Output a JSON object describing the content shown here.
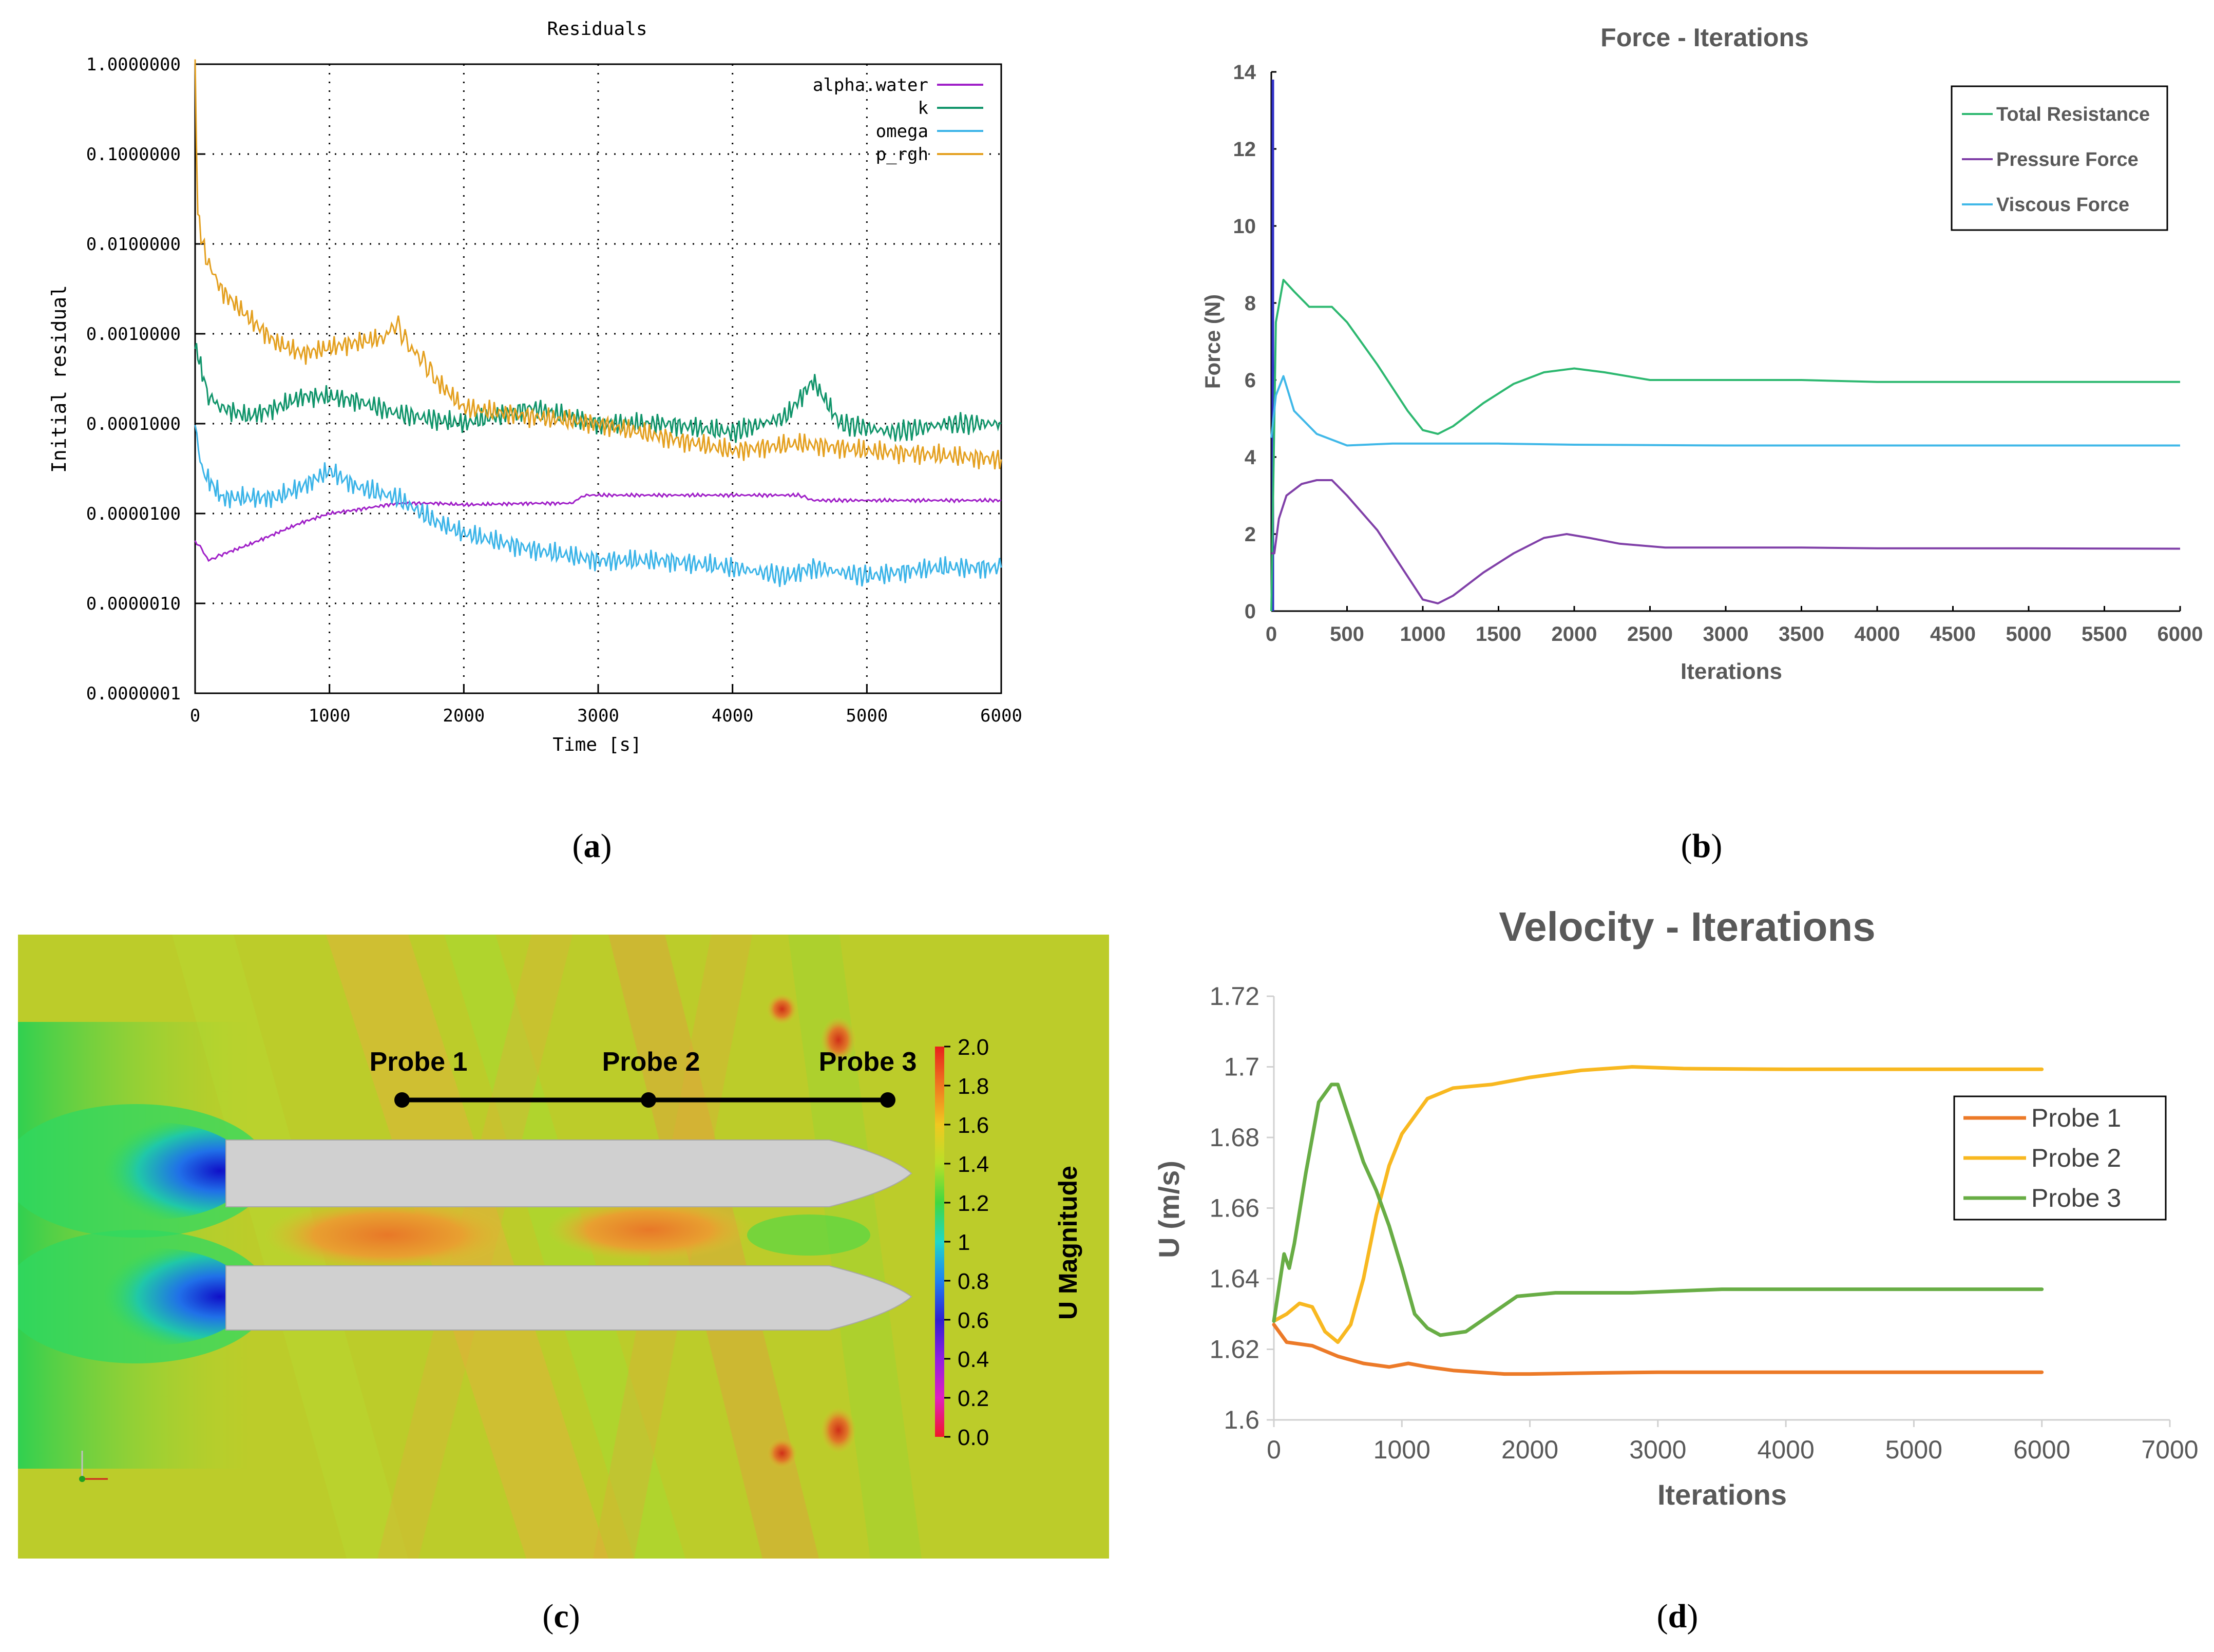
{
  "captions": {
    "a_open": "(",
    "a_letter": "a",
    "a_close": ")",
    "b_open": "(",
    "b_letter": "b",
    "b_close": ")",
    "c_open": "(",
    "c_letter": "c",
    "c_close": ")",
    "d_open": "(",
    "d_letter": "d",
    "d_close": ")"
  },
  "chart_data": [
    {
      "id": "a",
      "type": "line",
      "title": "Residuals",
      "xlabel": "Time [s]",
      "ylabel": "Initial residual",
      "yscale": "log",
      "xlim": [
        0,
        6000
      ],
      "ylim": [
        1e-07,
        1
      ],
      "xticks": [
        "0",
        "1000",
        "2000",
        "3000",
        "4000",
        "5000",
        "6000"
      ],
      "yticks": [
        "1.0000000",
        "0.1000000",
        "0.0100000",
        "0.0010000",
        "0.0001000",
        "0.0000100",
        "0.0000010",
        "0.0000001"
      ],
      "grid": true,
      "legend": "top-right",
      "series": [
        {
          "name": "alpha.water",
          "color": "#a020c8",
          "x": [
            0,
            50,
            100,
            200,
            400,
            600,
            800,
            1000,
            1200,
            1500,
            1800,
            2000,
            2500,
            2800,
            2900,
            3500,
            4500,
            4600,
            5000,
            6000
          ],
          "y": [
            5e-06,
            4e-06,
            3e-06,
            3.5e-06,
            4.5e-06,
            6e-06,
            8e-06,
            1e-05,
            1.1e-05,
            1.3e-05,
            1.3e-05,
            1.25e-05,
            1.3e-05,
            1.3e-05,
            1.6e-05,
            1.6e-05,
            1.6e-05,
            1.4e-05,
            1.4e-05,
            1.4e-05
          ]
        },
        {
          "name": "k",
          "color": "#10946a",
          "x": [
            0,
            30,
            100,
            200,
            400,
            600,
            800,
            1000,
            1200,
            1500,
            1800,
            2000,
            2500,
            3000,
            3500,
            4000,
            4400,
            4600,
            4800,
            5200,
            5600,
            6000
          ],
          "y": [
            0.0008,
            0.0005,
            0.0002,
            0.00015,
            0.00012,
            0.00015,
            0.0002,
            0.0002,
            0.00018,
            0.00013,
            0.00011,
            0.0001,
            0.00015,
            0.0001,
            0.0001,
            8e-05,
            0.00012,
            0.0003,
            0.0001,
            8e-05,
            0.0001,
            0.0001
          ]
        },
        {
          "name": "omega",
          "color": "#3bb4e8",
          "x": [
            0,
            50,
            200,
            400,
            600,
            800,
            1000,
            1200,
            1500,
            1800,
            2000,
            2500,
            3000,
            3500,
            4000,
            4400,
            4600,
            5000,
            5500,
            6000
          ],
          "y": [
            0.0001,
            3e-05,
            1.5e-05,
            1.5e-05,
            1.5e-05,
            2e-05,
            3e-05,
            2e-05,
            1.5e-05,
            8e-06,
            6e-06,
            4e-06,
            3e-06,
            3e-06,
            2.5e-06,
            2e-06,
            2.5e-06,
            2e-06,
            2.5e-06,
            2.5e-06
          ]
        },
        {
          "name": "p_rgh",
          "color": "#e4a020",
          "x": [
            0,
            20,
            80,
            200,
            400,
            600,
            800,
            1000,
            1200,
            1400,
            1500,
            1600,
            1700,
            1800,
            2000,
            2500,
            3000,
            3500,
            4000,
            4500,
            5000,
            5500,
            6000
          ],
          "y": [
            0.9,
            0.02,
            0.007,
            0.003,
            0.0015,
            0.0008,
            0.0006,
            0.0007,
            0.0008,
            0.0009,
            0.0013,
            0.0007,
            0.0005,
            0.0003,
            0.00015,
            0.00012,
            0.0001,
            7e-05,
            5e-05,
            6e-05,
            5e-05,
            4.5e-05,
            4e-05
          ]
        }
      ]
    },
    {
      "id": "b",
      "type": "line",
      "title": "Force - Iterations",
      "xlabel": "Iterations",
      "ylabel": "Force (N)",
      "xlim": [
        0,
        6000
      ],
      "ylim": [
        0,
        14
      ],
      "xticks": [
        "0",
        "500",
        "1000",
        "1500",
        "2000",
        "2500",
        "3000",
        "3500",
        "4000",
        "4500",
        "5000",
        "5500",
        "6000"
      ],
      "yticks": [
        "0",
        "2",
        "4",
        "6",
        "8",
        "10",
        "12",
        "14"
      ],
      "grid": false,
      "legend": "top-right",
      "series": [
        {
          "name": "Total Resistance",
          "color": "#2db870",
          "x": [
            0,
            30,
            80,
            150,
            250,
            400,
            500,
            700,
            900,
            1000,
            1100,
            1200,
            1400,
            1600,
            1800,
            2000,
            2200,
            2500,
            3000,
            3500,
            4000,
            5000,
            6000
          ],
          "y": [
            0,
            7.5,
            8.6,
            8.3,
            7.9,
            7.9,
            7.5,
            6.4,
            5.2,
            4.7,
            4.6,
            4.8,
            5.4,
            5.9,
            6.2,
            6.3,
            6.2,
            6.0,
            6.0,
            6.0,
            5.95,
            5.95,
            5.95
          ]
        },
        {
          "name": "Pressure Force",
          "color": "#8040a8",
          "x": [
            0,
            20,
            50,
            100,
            200,
            300,
            400,
            500,
            700,
            900,
            1000,
            1100,
            1200,
            1400,
            1600,
            1800,
            1950,
            2100,
            2300,
            2600,
            3000,
            3500,
            4000,
            5000,
            6000
          ],
          "y": [
            1.5,
            1.5,
            2.4,
            3.0,
            3.3,
            3.4,
            3.4,
            3.0,
            2.1,
            0.9,
            0.3,
            0.2,
            0.4,
            1.0,
            1.5,
            1.9,
            2.0,
            1.9,
            1.75,
            1.65,
            1.65,
            1.65,
            1.63,
            1.63,
            1.62
          ]
        },
        {
          "name": "Viscous Force",
          "color": "#40b8e8",
          "x": [
            0,
            30,
            80,
            150,
            300,
            500,
            800,
            1000,
            1500,
            2000,
            3000,
            4000,
            5000,
            6000
          ],
          "y": [
            4.5,
            5.6,
            6.1,
            5.2,
            4.6,
            4.3,
            4.35,
            4.35,
            4.35,
            4.32,
            4.3,
            4.3,
            4.3,
            4.3
          ]
        }
      ]
    },
    {
      "id": "d",
      "type": "line",
      "title": "Velocity - Iterations",
      "xlabel": "Iterations",
      "ylabel": "U (m/s)",
      "xlim": [
        0,
        7000
      ],
      "ylim": [
        1.6,
        1.72
      ],
      "xticks": [
        "0",
        "1000",
        "2000",
        "3000",
        "4000",
        "5000",
        "6000",
        "7000"
      ],
      "yticks": [
        "1.6",
        "1.62",
        "1.64",
        "1.66",
        "1.68",
        "1.7",
        "1.72"
      ],
      "grid": false,
      "legend": "right",
      "series": [
        {
          "name": "Probe 1",
          "color": "#ec7a28",
          "x": [
            0,
            100,
            300,
            500,
            700,
            900,
            1050,
            1200,
            1400,
            1600,
            1800,
            2000,
            2500,
            3000,
            4000,
            5000,
            6000
          ],
          "y": [
            1.627,
            1.622,
            1.621,
            1.618,
            1.616,
            1.615,
            1.616,
            1.615,
            1.614,
            1.6135,
            1.613,
            1.613,
            1.6133,
            1.6135,
            1.6135,
            1.6135,
            1.6135
          ]
        },
        {
          "name": "Probe 2",
          "color": "#f8b820",
          "x": [
            0,
            100,
            200,
            300,
            400,
            500,
            600,
            700,
            800,
            900,
            1000,
            1200,
            1400,
            1700,
            2000,
            2400,
            2800,
            3200,
            4000,
            5000,
            6000
          ],
          "y": [
            1.628,
            1.63,
            1.633,
            1.632,
            1.625,
            1.622,
            1.627,
            1.64,
            1.658,
            1.672,
            1.681,
            1.691,
            1.694,
            1.695,
            1.697,
            1.699,
            1.7,
            1.6995,
            1.6993,
            1.6993,
            1.6993
          ]
        },
        {
          "name": "Probe 3",
          "color": "#68ad45",
          "x": [
            0,
            80,
            120,
            160,
            250,
            350,
            450,
            500,
            600,
            700,
            800,
            900,
            1000,
            1100,
            1200,
            1300,
            1500,
            1700,
            1900,
            2200,
            2800,
            3500,
            4500,
            6000
          ],
          "y": [
            1.628,
            1.647,
            1.643,
            1.65,
            1.67,
            1.69,
            1.695,
            1.695,
            1.684,
            1.673,
            1.665,
            1.655,
            1.643,
            1.63,
            1.626,
            1.624,
            1.625,
            1.63,
            1.635,
            1.636,
            1.636,
            1.637,
            1.637,
            1.637
          ]
        }
      ]
    }
  ],
  "panel_c": {
    "probes": [
      "Probe 1",
      "Probe 2",
      "Probe 3"
    ],
    "colorbar_title": "U Magnitude",
    "colorbar_ticks": [
      "2.0",
      "1.8",
      "1.6",
      "1.4",
      "1.2",
      "1",
      "0.8",
      "0.6",
      "0.4",
      "0.2",
      "0.0"
    ]
  }
}
